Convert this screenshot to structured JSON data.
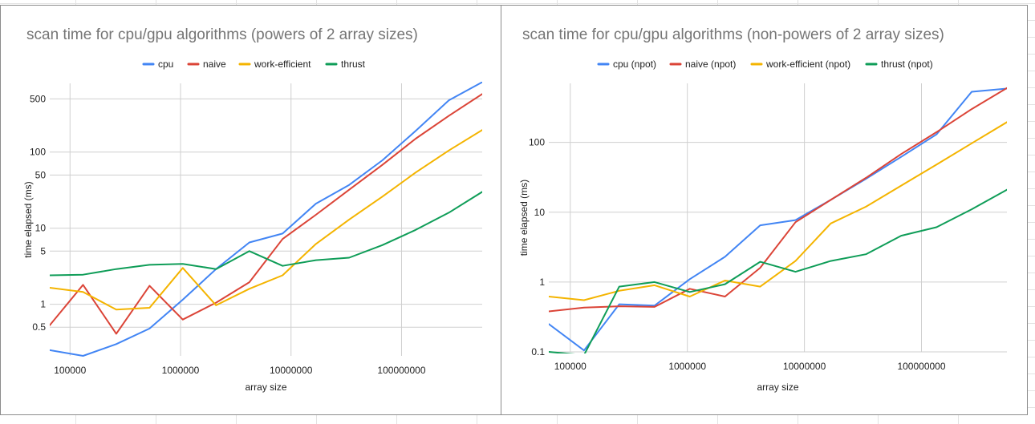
{
  "chart_data": [
    {
      "type": "line",
      "title": "scan time for cpu/gpu algorithms (powers of 2 array sizes)",
      "xlabel": "array size",
      "ylabel": "time elapsed (ms)",
      "x_scale": "log",
      "y_scale": "log",
      "x": [
        65536,
        131072,
        262144,
        524288,
        1048576,
        2097152,
        4194304,
        8388608,
        16777216,
        33554432,
        67108864,
        134217728,
        268435456,
        536870912
      ],
      "xlim": [
        65536,
        536870912
      ],
      "ylim": [
        0.21,
        800
      ],
      "x_ticks": [
        {
          "value": 100000,
          "label": "100000"
        },
        {
          "value": 1000000,
          "label": "1000000"
        },
        {
          "value": 10000000,
          "label": "10000000"
        },
        {
          "value": 100000000,
          "label": "100000000"
        }
      ],
      "y_ticks": [
        {
          "value": 0.5,
          "label": "0.5"
        },
        {
          "value": 1,
          "label": "1"
        },
        {
          "value": 5,
          "label": "5"
        },
        {
          "value": 10,
          "label": "10"
        },
        {
          "value": 50,
          "label": "50"
        },
        {
          "value": 100,
          "label": "100"
        },
        {
          "value": 500,
          "label": "500"
        }
      ],
      "grid": true,
      "legend_position": "top",
      "series": [
        {
          "name": "cpu",
          "color": "#4285f4",
          "values": [
            0.25,
            0.21,
            0.3,
            0.48,
            1.15,
            2.9,
            6.5,
            8.5,
            21,
            37,
            78,
            190,
            480,
            830
          ]
        },
        {
          "name": "naive",
          "color": "#db4437",
          "values": [
            0.53,
            1.8,
            0.41,
            1.75,
            0.63,
            1.05,
            1.95,
            7.2,
            15,
            32,
            68,
            150,
            300,
            580
          ]
        },
        {
          "name": "work-efficient",
          "color": "#f4b400",
          "values": [
            1.65,
            1.45,
            0.85,
            0.9,
            3.0,
            0.97,
            1.6,
            2.4,
            6.2,
            13,
            26,
            54,
            105,
            195
          ]
        },
        {
          "name": "thrust",
          "color": "#0f9d58",
          "values": [
            2.4,
            2.45,
            2.9,
            3.3,
            3.4,
            2.9,
            5.0,
            3.2,
            3.8,
            4.1,
            6.0,
            9.5,
            16,
            30
          ]
        }
      ]
    },
    {
      "type": "line",
      "title": "scan time for cpu/gpu algorithms (non-powers of 2 array sizes)",
      "xlabel": "array size",
      "ylabel": "time elapsed (ms)",
      "x_scale": "log",
      "y_scale": "log",
      "x": [
        65533,
        131069,
        262141,
        524285,
        1048573,
        2097149,
        4194301,
        8388605,
        16777213,
        33554429,
        67108861,
        134217725,
        268435453,
        536870909
      ],
      "xlim": [
        65533,
        536870909
      ],
      "ylim": [
        0.1,
        700
      ],
      "x_ticks": [
        {
          "value": 100000,
          "label": "100000"
        },
        {
          "value": 1000000,
          "label": "1000000"
        },
        {
          "value": 10000000,
          "label": "10000000"
        },
        {
          "value": 100000000,
          "label": "100000000"
        }
      ],
      "y_ticks": [
        {
          "value": 0.1,
          "label": "0.1"
        },
        {
          "value": 1,
          "label": "1"
        },
        {
          "value": 10,
          "label": "10"
        },
        {
          "value": 100,
          "label": "100"
        }
      ],
      "grid": true,
      "legend_position": "top",
      "series": [
        {
          "name": "cpu (npot)",
          "color": "#4285f4",
          "values": [
            0.25,
            0.105,
            0.48,
            0.46,
            1.1,
            2.3,
            6.5,
            7.7,
            15,
            30,
            62,
            130,
            530,
            590
          ]
        },
        {
          "name": "naive (npot)",
          "color": "#db4437",
          "values": [
            0.38,
            0.43,
            0.45,
            0.44,
            0.8,
            0.62,
            1.6,
            7.2,
            15,
            31,
            68,
            140,
            300,
            600
          ]
        },
        {
          "name": "work-efficient (npot)",
          "color": "#f4b400",
          "values": [
            0.62,
            0.55,
            0.75,
            0.9,
            0.62,
            1.05,
            0.86,
            2.0,
            6.9,
            12,
            24,
            48,
            97,
            195
          ]
        },
        {
          "name": "thrust (npot)",
          "color": "#0f9d58",
          "values": [
            0.1,
            0.09,
            0.86,
            1.0,
            0.72,
            0.93,
            1.95,
            1.4,
            2.0,
            2.5,
            4.6,
            6.1,
            11,
            21
          ]
        }
      ]
    }
  ]
}
